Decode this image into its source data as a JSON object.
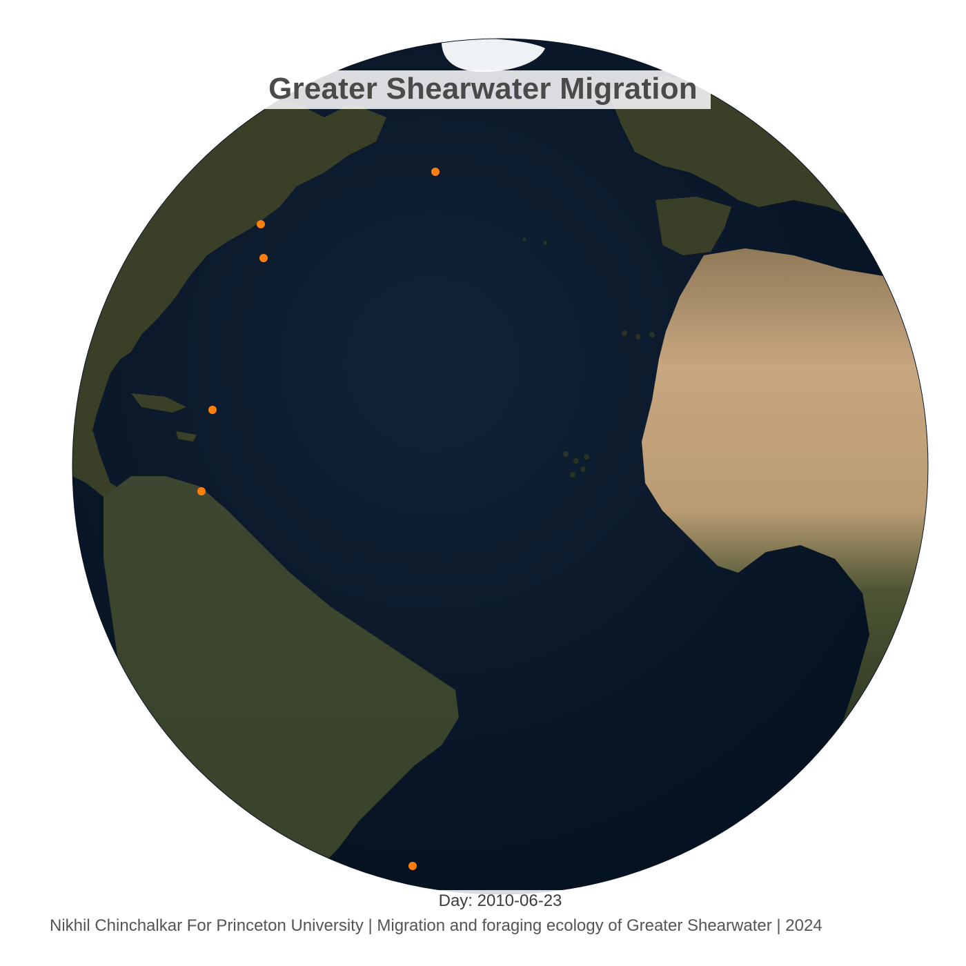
{
  "title": "Greater Shearwater Migration",
  "day_label": "Day: 2010-06-23",
  "credit": "Nikhil Chinchalkar For Princeton University | Migration and foraging ecology of Greater Shearwater | 2024",
  "map": {
    "projection": "orthographic",
    "center_region": "Atlantic Ocean",
    "colors": {
      "ocean": "#0e1a2b",
      "land": "#3a4028",
      "desert": "#b89a72",
      "ice": "#eef2f4",
      "bird_marker": "#ff7f0e"
    }
  },
  "markers": [
    {
      "name": "bird-1"
    },
    {
      "name": "bird-2"
    },
    {
      "name": "bird-3"
    },
    {
      "name": "bird-4"
    },
    {
      "name": "bird-5"
    },
    {
      "name": "bird-6"
    }
  ]
}
